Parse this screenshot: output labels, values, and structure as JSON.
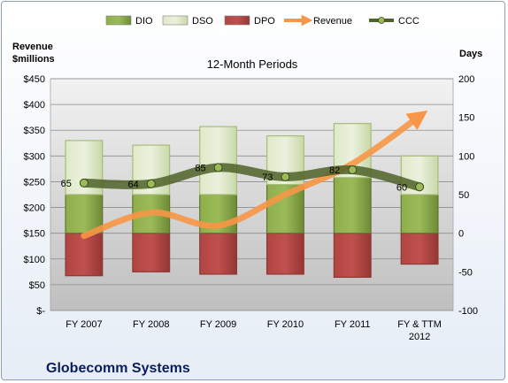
{
  "chart_data": {
    "type": "bar",
    "title": "12-Month Periods",
    "company": "Globecomm Systems",
    "left_axis_label_line1": "Revenue",
    "left_axis_label_line2": "$millions",
    "right_axis_label": "Days",
    "categories": [
      [
        "FY 2007"
      ],
      [
        "FY 2008"
      ],
      [
        "FY 2009"
      ],
      [
        "FY 2010"
      ],
      [
        "FY 2011"
      ],
      [
        "FY & TTM",
        "2012"
      ]
    ],
    "left_axis": {
      "min": 0,
      "max": 450,
      "step": 50,
      "tick_labels": [
        "$-",
        "$50",
        "$100",
        "$150",
        "$200",
        "$250",
        "$300",
        "$350",
        "$400",
        "$450"
      ]
    },
    "right_axis": {
      "min": -100,
      "max": 200,
      "step": 50,
      "tick_labels": [
        "-100",
        "-50",
        "0",
        "50",
        "100",
        "150",
        "200"
      ]
    },
    "grid": "horizontal",
    "legend_position": "top",
    "series": [
      {
        "name": "DIO",
        "kind": "bar",
        "axis": "right",
        "color": "#77933c",
        "values": [
          50,
          50,
          50,
          63,
          72,
          50
        ]
      },
      {
        "name": "DSO",
        "kind": "bar",
        "axis": "right",
        "color": "#d7e4bd",
        "values": [
          70,
          64,
          88,
          63,
          70,
          50
        ]
      },
      {
        "name": "DPO",
        "kind": "bar",
        "axis": "right",
        "color": "#c0504d",
        "values": [
          -55,
          -50,
          -53,
          -53,
          -57,
          -40
        ]
      },
      {
        "name": "Revenue",
        "kind": "arrow-line",
        "axis": "left",
        "color": "#f79646",
        "values": [
          145,
          190,
          165,
          225,
          285,
          377
        ]
      },
      {
        "name": "CCC",
        "kind": "line",
        "axis": "right",
        "color": "#4f6228",
        "values": [
          65,
          64,
          85,
          73,
          82,
          60
        ],
        "labels": [
          "65",
          "64",
          "85",
          "73",
          "82",
          "60"
        ]
      }
    ]
  }
}
